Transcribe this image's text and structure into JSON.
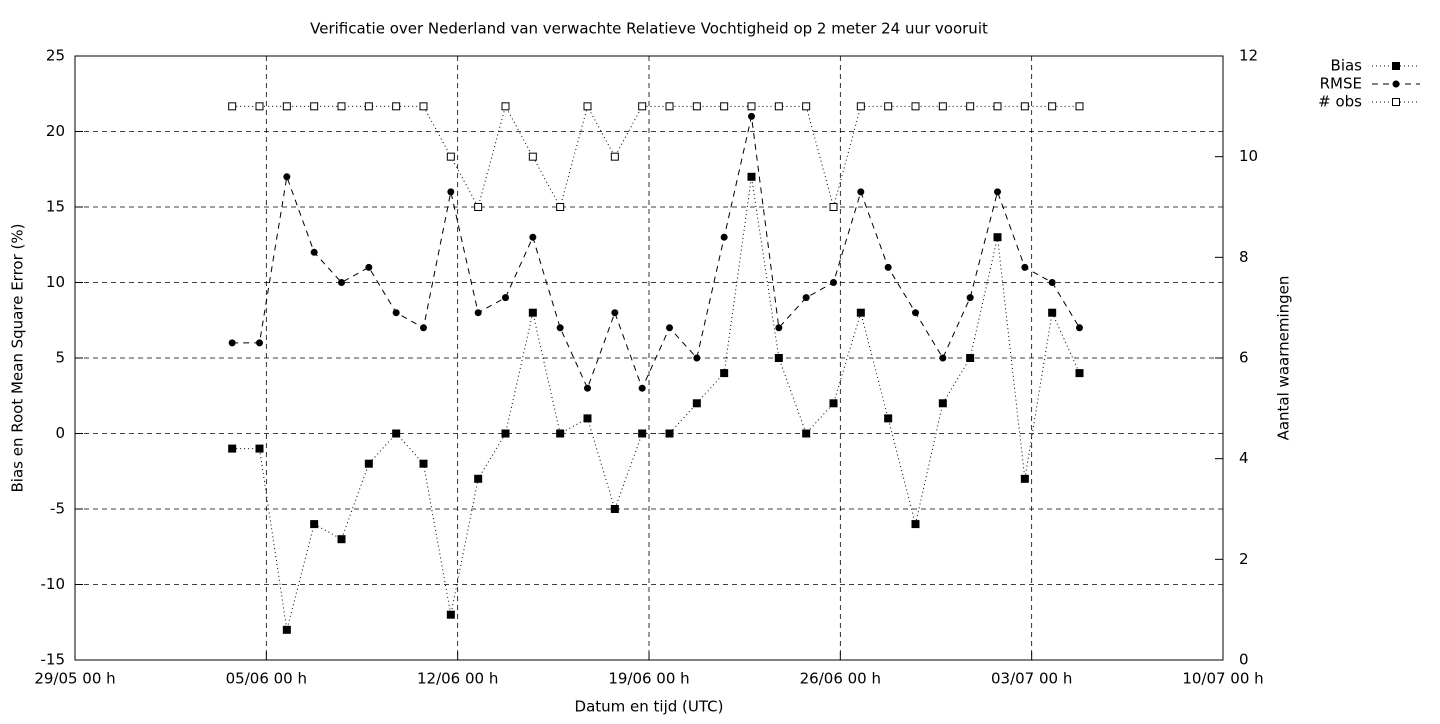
{
  "chart_data": {
    "type": "line",
    "title": "Verificatie over Nederland van verwachte Relatieve Vochtigheid op 2 meter 24 uur vooruit",
    "x_label": "Datum en tijd (UTC)",
    "y_label": "Bias en Root Mean Square Error (%)",
    "y2_label": "Aantal waarnemingen",
    "x": [
      "03/06 18 h",
      "04/06 18 h",
      "05/06 18 h",
      "06/06 18 h",
      "07/06 18 h",
      "08/06 18 h",
      "09/06 18 h",
      "10/06 18 h",
      "11/06 18 h",
      "12/06 18 h",
      "13/06 18 h",
      "14/06 18 h",
      "15/06 18 h",
      "16/06 18 h",
      "17/06 18 h",
      "18/06 18 h",
      "19/06 18 h",
      "20/06 18 h",
      "21/06 18 h",
      "22/06 18 h",
      "23/06 18 h",
      "24/06 18 h",
      "25/06 18 h",
      "26/06 18 h",
      "27/06 18 h",
      "28/06 18 h",
      "29/06 18 h",
      "30/06 18 h",
      "01/07 18 h",
      "02/07 18 h",
      "03/07 18 h",
      "04/07 18 h"
    ],
    "xlim": [
      "29/05 00 h",
      "10/07 00 h"
    ],
    "xticks": [
      "29/05 00 h",
      "05/06 00 h",
      "12/06 00 h",
      "19/06 00 h",
      "26/06 00 h",
      "03/07 00 h",
      "10/07 00 h"
    ],
    "ylim": [
      -15,
      25
    ],
    "yticks": [
      -15,
      -10,
      -5,
      0,
      5,
      10,
      15,
      20,
      25
    ],
    "y2lim": [
      0,
      12
    ],
    "y2ticks": [
      0,
      2,
      4,
      6,
      8,
      10,
      12
    ],
    "grid": true,
    "legend": "top-right",
    "series": [
      {
        "name": "Bias",
        "color": "#000000",
        "line_style": "dotted",
        "marker": "filled-square",
        "values": [
          -1,
          -1,
          -13,
          -6,
          -7,
          -2,
          0,
          -2,
          -12,
          -3,
          0,
          8,
          0,
          1,
          -5,
          0,
          0,
          2,
          4,
          17,
          5,
          0,
          2,
          8,
          1,
          -6,
          2,
          5,
          13,
          -3,
          8,
          4
        ]
      },
      {
        "name": "RMSE",
        "color": "#000000",
        "line_style": "dashed",
        "marker": "filled-circle",
        "values": [
          6,
          6,
          17,
          12,
          10,
          11,
          8,
          7,
          16,
          8,
          9,
          13,
          7,
          3,
          8,
          3,
          7,
          5,
          13,
          21,
          7,
          9,
          10,
          16,
          11,
          8,
          5,
          9,
          16,
          11,
          10,
          7
        ]
      },
      {
        "name": "# obs",
        "color": "#000000",
        "line_style": "dotted",
        "marker": "open-square",
        "axis": "y2",
        "values": [
          11,
          11,
          11,
          11,
          11,
          11,
          11,
          11,
          10,
          9,
          11,
          10,
          9,
          11,
          10,
          11,
          11,
          11,
          11,
          11,
          11,
          11,
          9,
          11,
          11,
          11,
          11,
          11,
          11,
          11,
          11,
          11
        ]
      }
    ]
  }
}
